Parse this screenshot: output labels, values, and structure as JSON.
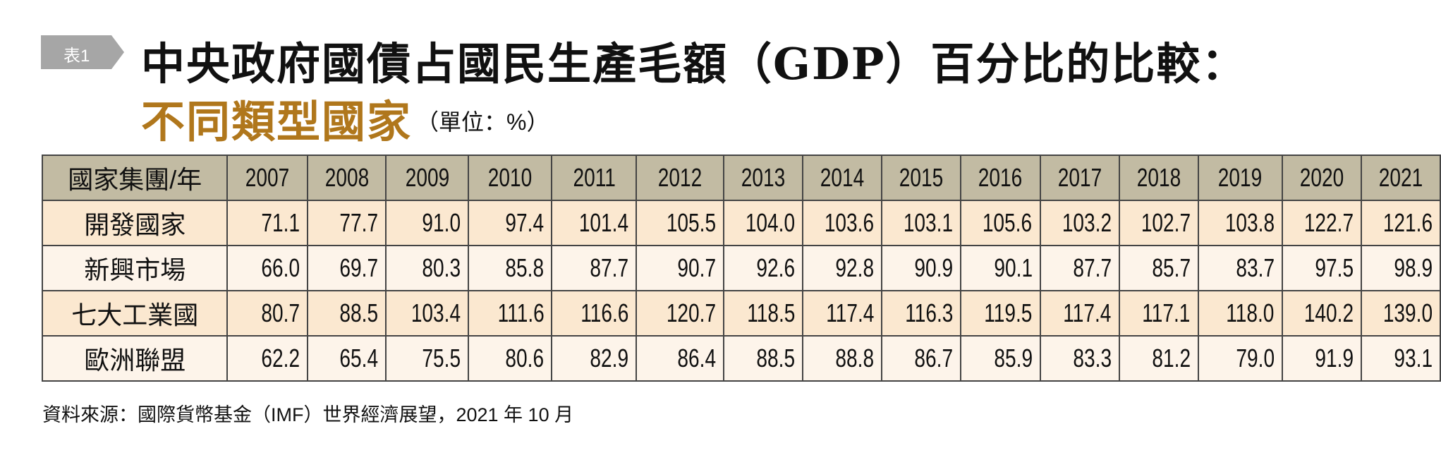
{
  "tag": "表1",
  "title_line1": "中央政府國債占國民生產毛額（GDP）百分比的比較：",
  "title_line2": "不同類型國家",
  "unit": "（單位：%）",
  "colors": {
    "header_bg": "#c2bba3",
    "row_odd": "#fbe8d0",
    "row_even": "#fdf4ea",
    "subtitle": "#b0771c",
    "tag_bg": "#a6a6a6"
  },
  "table": {
    "corner_header": "國家集團/年",
    "years": [
      "2007",
      "2008",
      "2009",
      "2010",
      "2011",
      "2012",
      "2013",
      "2014",
      "2015",
      "2016",
      "2017",
      "2018",
      "2019",
      "2020",
      "2021"
    ],
    "rows": [
      {
        "label": "開發國家",
        "values": [
          "71.1",
          "77.7",
          "91.0",
          "97.4",
          "101.4",
          "105.5",
          "104.0",
          "103.6",
          "103.1",
          "105.6",
          "103.2",
          "102.7",
          "103.8",
          "122.7",
          "121.6"
        ]
      },
      {
        "label": "新興市場",
        "values": [
          "66.0",
          "69.7",
          "80.3",
          "85.8",
          "87.7",
          "90.7",
          "92.6",
          "92.8",
          "90.9",
          "90.1",
          "87.7",
          "85.7",
          "83.7",
          "97.5",
          "98.9"
        ]
      },
      {
        "label": "七大工業國",
        "values": [
          "80.7",
          "88.5",
          "103.4",
          "111.6",
          "116.6",
          "120.7",
          "118.5",
          "117.4",
          "116.3",
          "119.5",
          "117.4",
          "117.1",
          "118.0",
          "140.2",
          "139.0"
        ]
      },
      {
        "label": "歐洲聯盟",
        "values": [
          "62.2",
          "65.4",
          "75.5",
          "80.6",
          "82.9",
          "86.4",
          "88.5",
          "88.8",
          "86.7",
          "85.9",
          "83.3",
          "81.2",
          "79.0",
          "91.9",
          "93.1"
        ]
      }
    ]
  },
  "footnote": "資料來源：國際貨幣基金（IMF）世界經濟展望，2021 年 10 月"
}
